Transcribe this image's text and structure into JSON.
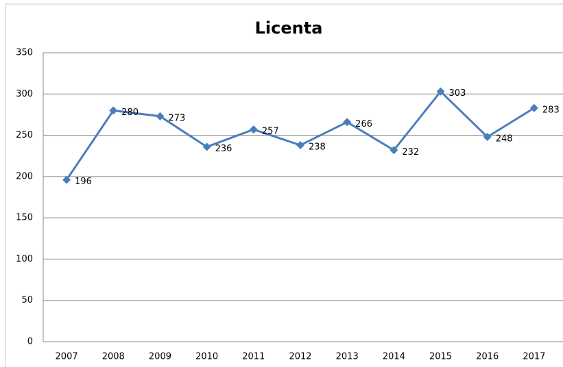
{
  "chart_data": {
    "type": "line",
    "title": "Licenta",
    "categories": [
      "2007",
      "2008",
      "2009",
      "2010",
      "2011",
      "2012",
      "2013",
      "2014",
      "2015",
      "2016",
      "2017"
    ],
    "values": [
      196,
      280,
      273,
      236,
      257,
      238,
      266,
      232,
      303,
      248,
      283
    ],
    "color": "#4a7ebb",
    "ylim": [
      0,
      350
    ],
    "yticks": [
      0,
      50,
      100,
      150,
      200,
      250,
      300,
      350
    ],
    "grid": true
  }
}
